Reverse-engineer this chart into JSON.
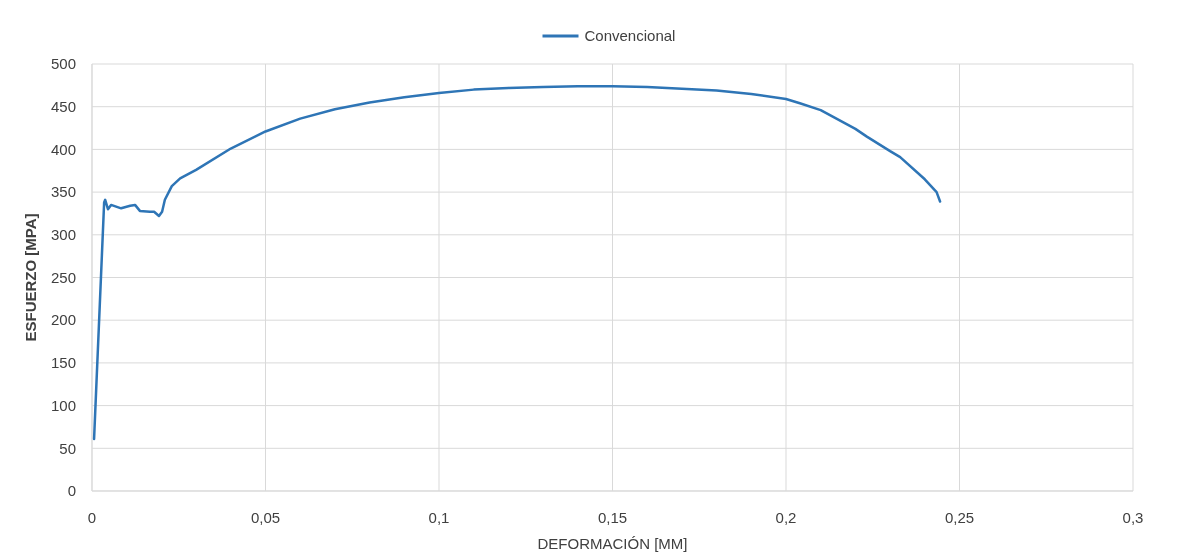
{
  "chart_data": {
    "type": "line",
    "xlabel": "DEFORMACIÓN [MM]",
    "ylabel": "ESFUERZO [MPA]",
    "xlim": [
      0,
      0.3
    ],
    "xticks": [
      0,
      {
        "value": 0.05,
        "label": "0,05"
      },
      {
        "value": 0.1,
        "label": "0,1"
      },
      {
        "value": 0.15,
        "label": "0,15"
      },
      {
        "value": 0.2,
        "label": "0,2"
      },
      {
        "value": 0.25,
        "label": "0,25"
      },
      {
        "value": 0.3,
        "label": "0,3"
      }
    ],
    "ylim": [
      0,
      500
    ],
    "yticks": [
      0,
      50,
      100,
      150,
      200,
      250,
      300,
      350,
      400,
      450,
      500
    ],
    "grid": true,
    "legend": "top",
    "series": [
      {
        "name": "Convencional",
        "color": "#2e75b6",
        "x": [
          0.0006,
          0.0035,
          0.0038,
          0.0046,
          0.0055,
          0.0084,
          0.011,
          0.0124,
          0.0138,
          0.0167,
          0.0179,
          0.0193,
          0.0202,
          0.021,
          0.023,
          0.0254,
          0.03,
          0.04,
          0.05,
          0.06,
          0.07,
          0.08,
          0.09,
          0.1,
          0.11,
          0.12,
          0.13,
          0.14,
          0.15,
          0.16,
          0.17,
          0.18,
          0.19,
          0.2,
          0.204,
          0.21,
          0.22,
          0.2233,
          0.23,
          0.2329,
          0.24,
          0.2434,
          0.2444
        ],
        "values": [
          61,
          338,
          341,
          330,
          335,
          331,
          334,
          335,
          328,
          327,
          327,
          322,
          327,
          341,
          357,
          366,
          376,
          401,
          421,
          436,
          447,
          455,
          461,
          466,
          470,
          472,
          473,
          474,
          474,
          473,
          471,
          469,
          465,
          459,
          454,
          446,
          424,
          415,
          398,
          391,
          365,
          350,
          339
        ]
      }
    ]
  }
}
